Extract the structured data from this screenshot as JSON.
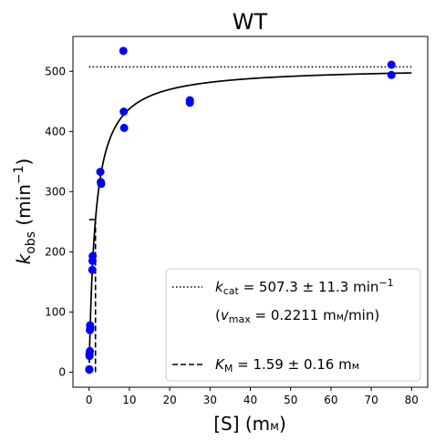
{
  "chart_data": {
    "type": "scatter",
    "title": "WT",
    "xlabel": {
      "main": "[S] (m",
      "unit_sc": "м",
      "close": ")"
    },
    "ylabel": {
      "k": "k",
      "sub": "obs",
      "pre": " (min",
      "sup": "−1",
      "post": ")"
    },
    "xlim": [
      -4,
      84
    ],
    "ylim": [
      -25,
      558
    ],
    "xticks": [
      0,
      10,
      20,
      30,
      40,
      50,
      60,
      70,
      80
    ],
    "yticks": [
      0,
      100,
      200,
      300,
      400,
      500
    ],
    "grid": false,
    "legend_position": "lower-right",
    "colors": {
      "points": "#0000ff",
      "fit": "#000000"
    },
    "data_points": [
      [
        0.05,
        5
      ],
      [
        0.05,
        4
      ],
      [
        0.1,
        30
      ],
      [
        0.1,
        27
      ],
      [
        0.2,
        35
      ],
      [
        0.2,
        70
      ],
      [
        0.25,
        78
      ],
      [
        0.3,
        72
      ],
      [
        0.3,
        75
      ],
      [
        0.8,
        170
      ],
      [
        0.85,
        185
      ],
      [
        0.9,
        193
      ],
      [
        2.8,
        333
      ],
      [
        2.9,
        316
      ],
      [
        3.0,
        313
      ],
      [
        8.5,
        534
      ],
      [
        8.6,
        433
      ],
      [
        8.7,
        406
      ],
      [
        25,
        452
      ],
      [
        25,
        448
      ],
      [
        75,
        511
      ],
      [
        75,
        494
      ]
    ],
    "fit": {
      "kcat": 507.3,
      "km": 1.59,
      "x_range": [
        0.05,
        80
      ]
    },
    "kcat_line": {
      "y": 507.3,
      "x_range": [
        0,
        80
      ]
    },
    "km_line": {
      "x": 1.59,
      "y_range": [
        0,
        253.6
      ],
      "h_x_range": [
        0,
        1.59
      ]
    },
    "legend": {
      "kcat": {
        "k": "k",
        "sub": "cat",
        "value": " = 507.3 ± 11.3 min",
        "sup": "−1"
      },
      "vmax": {
        "open": "(",
        "v": "v",
        "sub": "max",
        "value": " = 0.2211 m",
        "unit_sc": "м",
        "tail": "/min)"
      },
      "km": {
        "k": "K",
        "sub": "M",
        "value": " = 1.59 ± 0.16 m",
        "unit_sc": "м"
      }
    }
  }
}
